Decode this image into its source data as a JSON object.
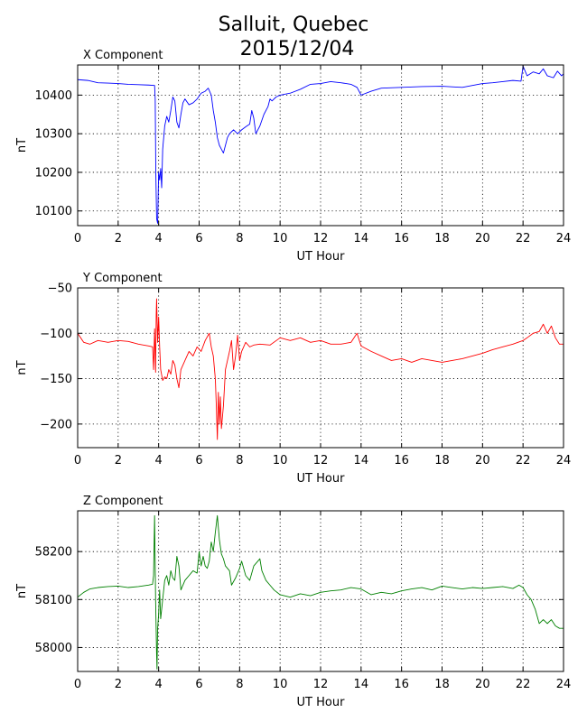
{
  "figure": {
    "title_line1": "Salluit, Quebec",
    "title_line2": "2015/12/04"
  },
  "chart_data": [
    {
      "type": "line",
      "title": "X Component",
      "xlabel": "UT Hour",
      "ylabel": "nT",
      "xlim": [
        0,
        24
      ],
      "ylim": [
        10062,
        10478
      ],
      "xticks": [
        0,
        2,
        4,
        6,
        8,
        10,
        12,
        14,
        16,
        18,
        20,
        22,
        24
      ],
      "yticks": [
        10100,
        10200,
        10300,
        10400
      ],
      "grid": true,
      "color": "#0000ff",
      "points": [
        [
          0,
          10440
        ],
        [
          0.5,
          10438
        ],
        [
          1,
          10432
        ],
        [
          1.5,
          10431
        ],
        [
          2,
          10430
        ],
        [
          2.5,
          10428
        ],
        [
          3,
          10427
        ],
        [
          3.5,
          10426
        ],
        [
          3.8,
          10425
        ],
        [
          3.83,
          10390
        ],
        [
          3.86,
          10200
        ],
        [
          3.9,
          10080
        ],
        [
          3.95,
          10068
        ],
        [
          4.0,
          10200
        ],
        [
          4.05,
          10180
        ],
        [
          4.1,
          10210
        ],
        [
          4.15,
          10160
        ],
        [
          4.2,
          10260
        ],
        [
          4.3,
          10320
        ],
        [
          4.4,
          10345
        ],
        [
          4.5,
          10330
        ],
        [
          4.6,
          10360
        ],
        [
          4.7,
          10395
        ],
        [
          4.8,
          10385
        ],
        [
          4.9,
          10330
        ],
        [
          5.0,
          10315
        ],
        [
          5.1,
          10350
        ],
        [
          5.2,
          10380
        ],
        [
          5.3,
          10390
        ],
        [
          5.5,
          10375
        ],
        [
          5.7,
          10380
        ],
        [
          5.9,
          10390
        ],
        [
          6.1,
          10405
        ],
        [
          6.3,
          10410
        ],
        [
          6.45,
          10418
        ],
        [
          6.6,
          10400
        ],
        [
          6.7,
          10360
        ],
        [
          6.8,
          10330
        ],
        [
          6.9,
          10290
        ],
        [
          7.0,
          10270
        ],
        [
          7.1,
          10260
        ],
        [
          7.2,
          10250
        ],
        [
          7.3,
          10270
        ],
        [
          7.4,
          10290
        ],
        [
          7.5,
          10300
        ],
        [
          7.7,
          10310
        ],
        [
          7.9,
          10300
        ],
        [
          8.1,
          10310
        ],
        [
          8.3,
          10318
        ],
        [
          8.5,
          10325
        ],
        [
          8.6,
          10360
        ],
        [
          8.7,
          10340
        ],
        [
          8.8,
          10300
        ],
        [
          9.0,
          10320
        ],
        [
          9.2,
          10350
        ],
        [
          9.4,
          10370
        ],
        [
          9.5,
          10390
        ],
        [
          9.6,
          10385
        ],
        [
          9.8,
          10395
        ],
        [
          10,
          10400
        ],
        [
          10.5,
          10405
        ],
        [
          11,
          10415
        ],
        [
          11.5,
          10428
        ],
        [
          12,
          10430
        ],
        [
          12.5,
          10435
        ],
        [
          13,
          10432
        ],
        [
          13.5,
          10428
        ],
        [
          13.8,
          10420
        ],
        [
          14,
          10400
        ],
        [
          14.5,
          10410
        ],
        [
          15,
          10418
        ],
        [
          16,
          10420
        ],
        [
          17,
          10422
        ],
        [
          18,
          10423
        ],
        [
          19,
          10420
        ],
        [
          20,
          10430
        ],
        [
          20.5,
          10432
        ],
        [
          21,
          10435
        ],
        [
          21.5,
          10438
        ],
        [
          21.9,
          10436
        ],
        [
          22,
          10475
        ],
        [
          22.2,
          10450
        ],
        [
          22.5,
          10460
        ],
        [
          22.8,
          10455
        ],
        [
          23,
          10468
        ],
        [
          23.2,
          10450
        ],
        [
          23.5,
          10445
        ],
        [
          23.7,
          10462
        ],
        [
          23.9,
          10450
        ],
        [
          24,
          10455
        ]
      ]
    },
    {
      "type": "line",
      "title": "Y Component",
      "xlabel": "UT Hour",
      "ylabel": "nT",
      "xlim": [
        0,
        24
      ],
      "ylim": [
        -226,
        -50
      ],
      "xticks": [
        0,
        2,
        4,
        6,
        8,
        10,
        12,
        14,
        16,
        18,
        20,
        22,
        24
      ],
      "yticks": [
        -50,
        -100,
        -150,
        -200
      ],
      "grid": true,
      "color": "#ff0000",
      "points": [
        [
          0,
          -100
        ],
        [
          0.3,
          -110
        ],
        [
          0.6,
          -112
        ],
        [
          1,
          -108
        ],
        [
          1.5,
          -110
        ],
        [
          2,
          -108
        ],
        [
          2.5,
          -109
        ],
        [
          3,
          -112
        ],
        [
          3.5,
          -114
        ],
        [
          3.7,
          -115
        ],
        [
          3.75,
          -140
        ],
        [
          3.8,
          -95
        ],
        [
          3.85,
          -143
        ],
        [
          3.88,
          -80
        ],
        [
          3.9,
          -62
        ],
        [
          3.95,
          -110
        ],
        [
          4.0,
          -82
        ],
        [
          4.05,
          -115
        ],
        [
          4.1,
          -140
        ],
        [
          4.2,
          -152
        ],
        [
          4.3,
          -148
        ],
        [
          4.4,
          -150
        ],
        [
          4.5,
          -140
        ],
        [
          4.6,
          -145
        ],
        [
          4.7,
          -130
        ],
        [
          4.8,
          -135
        ],
        [
          4.9,
          -150
        ],
        [
          5.0,
          -160
        ],
        [
          5.1,
          -140
        ],
        [
          5.3,
          -130
        ],
        [
          5.5,
          -120
        ],
        [
          5.7,
          -125
        ],
        [
          5.9,
          -115
        ],
        [
          6.1,
          -120
        ],
        [
          6.3,
          -108
        ],
        [
          6.5,
          -100
        ],
        [
          6.6,
          -115
        ],
        [
          6.7,
          -125
        ],
        [
          6.8,
          -150
        ],
        [
          6.85,
          -180
        ],
        [
          6.9,
          -217
        ],
        [
          6.95,
          -165
        ],
        [
          7.0,
          -200
        ],
        [
          7.05,
          -170
        ],
        [
          7.1,
          -205
        ],
        [
          7.2,
          -180
        ],
        [
          7.3,
          -140
        ],
        [
          7.4,
          -130
        ],
        [
          7.5,
          -120
        ],
        [
          7.6,
          -108
        ],
        [
          7.7,
          -140
        ],
        [
          7.8,
          -125
        ],
        [
          7.9,
          -102
        ],
        [
          8.0,
          -130
        ],
        [
          8.1,
          -120
        ],
        [
          8.3,
          -110
        ],
        [
          8.5,
          -115
        ],
        [
          8.7,
          -113
        ],
        [
          9,
          -112
        ],
        [
          9.5,
          -113
        ],
        [
          10,
          -105
        ],
        [
          10.5,
          -108
        ],
        [
          11,
          -105
        ],
        [
          11.5,
          -110
        ],
        [
          12,
          -108
        ],
        [
          12.5,
          -112
        ],
        [
          13,
          -112
        ],
        [
          13.5,
          -110
        ],
        [
          13.8,
          -100
        ],
        [
          14,
          -114
        ],
        [
          14.5,
          -120
        ],
        [
          15,
          -125
        ],
        [
          15.5,
          -130
        ],
        [
          16,
          -128
        ],
        [
          16.5,
          -132
        ],
        [
          17,
          -128
        ],
        [
          17.5,
          -130
        ],
        [
          18,
          -132
        ],
        [
          18.5,
          -130
        ],
        [
          19,
          -128
        ],
        [
          19.5,
          -125
        ],
        [
          20,
          -122
        ],
        [
          20.5,
          -118
        ],
        [
          21,
          -115
        ],
        [
          21.5,
          -112
        ],
        [
          22,
          -108
        ],
        [
          22.2,
          -105
        ],
        [
          22.5,
          -100
        ],
        [
          22.8,
          -98
        ],
        [
          23,
          -90
        ],
        [
          23.2,
          -100
        ],
        [
          23.4,
          -92
        ],
        [
          23.6,
          -105
        ],
        [
          23.8,
          -112
        ],
        [
          24,
          -112
        ]
      ]
    },
    {
      "type": "line",
      "title": "Z Component",
      "xlabel": "UT Hour",
      "ylabel": "nT",
      "xlim": [
        0,
        24
      ],
      "ylim": [
        57950,
        58285
      ],
      "xticks": [
        0,
        2,
        4,
        6,
        8,
        10,
        12,
        14,
        16,
        18,
        20,
        22,
        24
      ],
      "yticks": [
        58000,
        58100,
        58200
      ],
      "grid": true,
      "color": "#008000",
      "points": [
        [
          0,
          58105
        ],
        [
          0.3,
          58115
        ],
        [
          0.6,
          58122
        ],
        [
          1,
          58125
        ],
        [
          1.5,
          58127
        ],
        [
          2,
          58128
        ],
        [
          2.5,
          58125
        ],
        [
          3,
          58127
        ],
        [
          3.5,
          58130
        ],
        [
          3.7,
          58132
        ],
        [
          3.75,
          58150
        ],
        [
          3.8,
          58275
        ],
        [
          3.85,
          58100
        ],
        [
          3.9,
          57985
        ],
        [
          3.92,
          57955
        ],
        [
          3.95,
          58040
        ],
        [
          4.0,
          58070
        ],
        [
          4.05,
          58120
        ],
        [
          4.1,
          58060
        ],
        [
          4.2,
          58100
        ],
        [
          4.3,
          58140
        ],
        [
          4.4,
          58150
        ],
        [
          4.5,
          58130
        ],
        [
          4.6,
          58160
        ],
        [
          4.7,
          58145
        ],
        [
          4.8,
          58140
        ],
        [
          4.9,
          58190
        ],
        [
          5.0,
          58170
        ],
        [
          5.1,
          58120
        ],
        [
          5.3,
          58140
        ],
        [
          5.5,
          58150
        ],
        [
          5.7,
          58160
        ],
        [
          5.9,
          58155
        ],
        [
          6.0,
          58200
        ],
        [
          6.1,
          58170
        ],
        [
          6.2,
          58190
        ],
        [
          6.3,
          58170
        ],
        [
          6.4,
          58165
        ],
        [
          6.5,
          58180
        ],
        [
          6.6,
          58220
        ],
        [
          6.7,
          58200
        ],
        [
          6.8,
          58240
        ],
        [
          6.9,
          58275
        ],
        [
          7.0,
          58225
        ],
        [
          7.1,
          58195
        ],
        [
          7.2,
          58185
        ],
        [
          7.3,
          58170
        ],
        [
          7.5,
          58160
        ],
        [
          7.6,
          58130
        ],
        [
          7.8,
          58145
        ],
        [
          8.0,
          58165
        ],
        [
          8.1,
          58180
        ],
        [
          8.3,
          58150
        ],
        [
          8.5,
          58140
        ],
        [
          8.7,
          58170
        ],
        [
          8.9,
          58180
        ],
        [
          9.0,
          58185
        ],
        [
          9.1,
          58160
        ],
        [
          9.3,
          58140
        ],
        [
          9.5,
          58130
        ],
        [
          9.7,
          58120
        ],
        [
          10,
          58110
        ],
        [
          10.5,
          58105
        ],
        [
          11,
          58112
        ],
        [
          11.5,
          58108
        ],
        [
          12,
          58115
        ],
        [
          12.5,
          58118
        ],
        [
          13,
          58120
        ],
        [
          13.5,
          58125
        ],
        [
          14,
          58122
        ],
        [
          14.5,
          58110
        ],
        [
          15,
          58115
        ],
        [
          15.5,
          58112
        ],
        [
          16,
          58118
        ],
        [
          16.5,
          58122
        ],
        [
          17,
          58125
        ],
        [
          17.5,
          58120
        ],
        [
          18,
          58128
        ],
        [
          18.5,
          58125
        ],
        [
          19,
          58122
        ],
        [
          19.5,
          58125
        ],
        [
          20,
          58123
        ],
        [
          20.5,
          58125
        ],
        [
          21,
          58127
        ],
        [
          21.5,
          58123
        ],
        [
          21.8,
          58130
        ],
        [
          22.0,
          58125
        ],
        [
          22.2,
          58110
        ],
        [
          22.4,
          58100
        ],
        [
          22.6,
          58080
        ],
        [
          22.8,
          58050
        ],
        [
          23.0,
          58058
        ],
        [
          23.2,
          58050
        ],
        [
          23.4,
          58058
        ],
        [
          23.6,
          58045
        ],
        [
          23.8,
          58040
        ],
        [
          24,
          58040
        ]
      ]
    }
  ]
}
